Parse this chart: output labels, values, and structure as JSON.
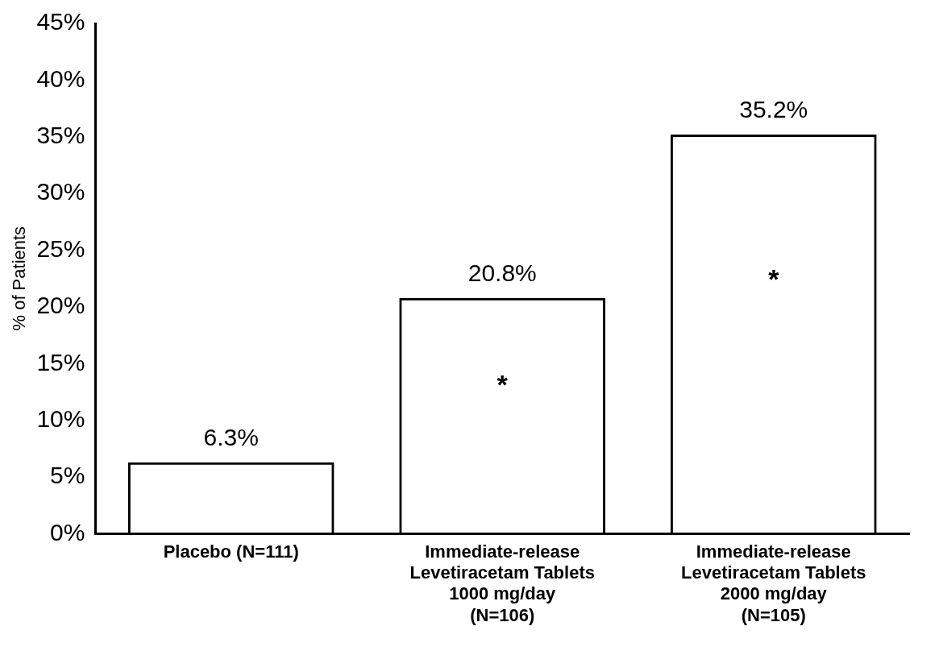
{
  "chart_data": {
    "type": "bar",
    "ylabel": "% of Patients",
    "categories": [
      "Placebo (N=111)",
      "Immediate-release\nLevetiracetam Tablets\n1000 mg/day\n(N=106)",
      "Immediate-release\nLevetiracetam Tablets\n2000 mg/day\n(N=105)"
    ],
    "values": [
      6.3,
      20.8,
      35.2
    ],
    "value_labels": [
      "6.3%",
      "20.8%",
      "35.2%"
    ],
    "color": "#000000",
    "ylim": [
      0,
      45
    ],
    "yticks": [
      {
        "value": 0,
        "label": "0%"
      },
      {
        "value": 5,
        "label": "5%"
      },
      {
        "value": 10,
        "label": "10%"
      },
      {
        "value": 15,
        "label": "15%"
      },
      {
        "value": 20,
        "label": "20%"
      },
      {
        "value": 25,
        "label": "25%"
      },
      {
        "value": 30,
        "label": "30%"
      },
      {
        "value": 35,
        "label": "35%"
      },
      {
        "value": 40,
        "label": "40%"
      },
      {
        "value": 45,
        "label": "45%"
      }
    ],
    "annotations": [
      "*",
      "*"
    ],
    "grid": false,
    "legend": false
  }
}
